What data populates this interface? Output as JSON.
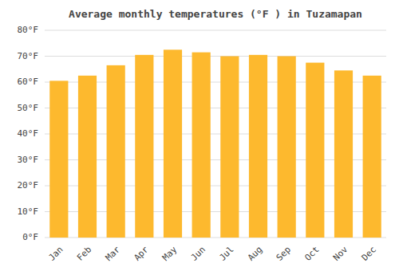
{
  "chart_data": {
    "type": "bar",
    "title": "Average monthly temperatures (°F ) in Tuzamapan",
    "categories": [
      "Jan",
      "Feb",
      "Mar",
      "Apr",
      "May",
      "Jun",
      "Jul",
      "Aug",
      "Sep",
      "Oct",
      "Nov",
      "Dec"
    ],
    "values": [
      60.5,
      62.5,
      66.5,
      70.5,
      72.5,
      71.5,
      70.0,
      70.5,
      70.0,
      67.5,
      64.5,
      62.5
    ],
    "color": "#FDB92E",
    "ylim": [
      0,
      80
    ],
    "yticks": [
      {
        "value": 0,
        "label": "0°F"
      },
      {
        "value": 10,
        "label": "10°F"
      },
      {
        "value": 20,
        "label": "20°F"
      },
      {
        "value": 30,
        "label": "30°F"
      },
      {
        "value": 40,
        "label": "40°F"
      },
      {
        "value": 50,
        "label": "50°F"
      },
      {
        "value": 60,
        "label": "60°F"
      },
      {
        "value": 70,
        "label": "70°F"
      },
      {
        "value": 80,
        "label": "80°F"
      }
    ],
    "grid": true
  }
}
